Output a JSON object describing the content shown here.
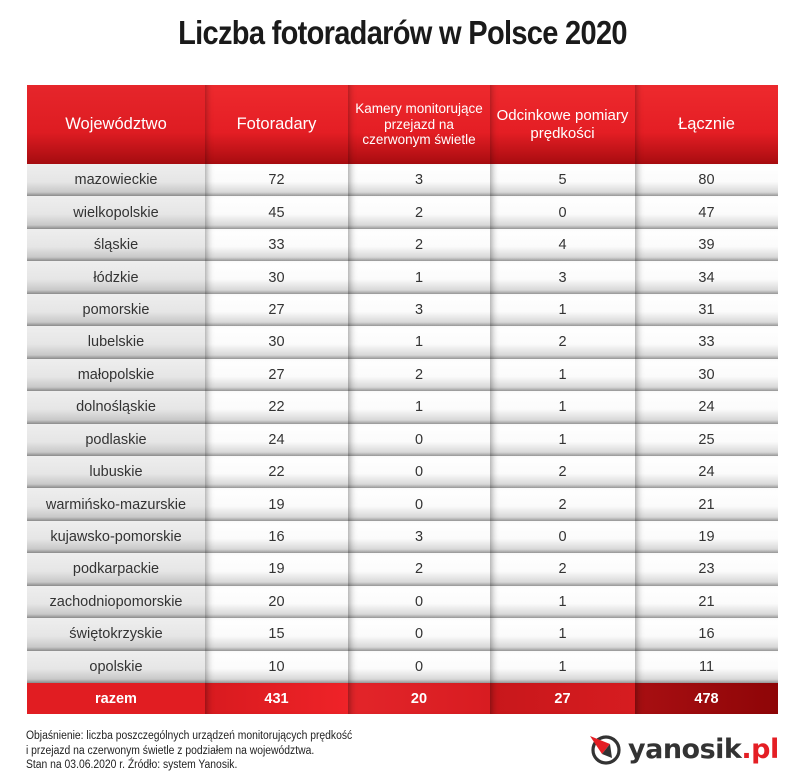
{
  "title": "Liczba fotoradarów w Polsce 2020",
  "table": {
    "headers": [
      "Województwo",
      "Fotoradary",
      "Kamery monitorujące przejazd na czerwonym świetle",
      "Odcinkowe pomiary prędkości",
      "Łącznie"
    ],
    "rows": [
      [
        "mazowieckie",
        "72",
        "3",
        "5",
        "80"
      ],
      [
        "wielkopolskie",
        "45",
        "2",
        "0",
        "47"
      ],
      [
        "śląskie",
        "33",
        "2",
        "4",
        "39"
      ],
      [
        "łódzkie",
        "30",
        "1",
        "3",
        "34"
      ],
      [
        "pomorskie",
        "27",
        "3",
        "1",
        "31"
      ],
      [
        "lubelskie",
        "30",
        "1",
        "2",
        "33"
      ],
      [
        "małopolskie",
        "27",
        "2",
        "1",
        "30"
      ],
      [
        "dolnośląskie",
        "22",
        "1",
        "1",
        "24"
      ],
      [
        "podlaskie",
        "24",
        "0",
        "1",
        "25"
      ],
      [
        "lubuskie",
        "22",
        "0",
        "2",
        "24"
      ],
      [
        "warmińsko-mazurskie",
        "19",
        "0",
        "2",
        "21"
      ],
      [
        "kujawsko-pomorskie",
        "16",
        "3",
        "0",
        "19"
      ],
      [
        "podkarpackie",
        "19",
        "2",
        "2",
        "23"
      ],
      [
        "zachodniopomorskie",
        "20",
        "0",
        "1",
        "21"
      ],
      [
        "świętokrzyskie",
        "15",
        "0",
        "1",
        "16"
      ],
      [
        "opolskie",
        "10",
        "0",
        "1",
        "11"
      ]
    ],
    "total": [
      "razem",
      "431",
      "20",
      "27",
      "478"
    ]
  },
  "footnote": {
    "line1": "Objaśnienie: liczba poszczególnych urządzeń monitorujących prędkość",
    "line2": "i przejazd na czerwonym świetle z podziałem na województwa.",
    "line3": "Stan na 03.06.2020 r. Źródło: system Yanosik."
  },
  "logo": {
    "text": "yanosik",
    "suffix": ".pl",
    "icon": "yanosik-compass-icon"
  },
  "colors": {
    "header_red": "#e41e24",
    "total_dark_red": "#8e0507",
    "first_col_gray": "#e6e6e6"
  },
  "chart_data": {
    "type": "table",
    "title": "Liczba fotoradarów w Polsce 2020",
    "columns": [
      "Województwo",
      "Fotoradary",
      "Kamery monitorujące przejazd na czerwonym świetle",
      "Odcinkowe pomiary prędkości",
      "Łącznie"
    ],
    "categories": [
      "mazowieckie",
      "wielkopolskie",
      "śląskie",
      "łódzkie",
      "pomorskie",
      "lubelskie",
      "małopolskie",
      "dolnośląskie",
      "podlaskie",
      "lubuskie",
      "warmińsko-mazurskie",
      "kujawsko-pomorskie",
      "podkarpackie",
      "zachodniopomorskie",
      "świętokrzyskie",
      "opolskie"
    ],
    "series": [
      {
        "name": "Fotoradary",
        "values": [
          72,
          45,
          33,
          30,
          27,
          30,
          27,
          22,
          24,
          22,
          19,
          16,
          19,
          20,
          15,
          10
        ]
      },
      {
        "name": "Kamery monitorujące przejazd na czerwonym świetle",
        "values": [
          3,
          2,
          2,
          1,
          3,
          1,
          2,
          1,
          0,
          0,
          0,
          3,
          2,
          0,
          0,
          0
        ]
      },
      {
        "name": "Odcinkowe pomiary prędkości",
        "values": [
          5,
          0,
          4,
          3,
          1,
          2,
          1,
          1,
          1,
          2,
          2,
          0,
          2,
          1,
          1,
          1
        ]
      },
      {
        "name": "Łącznie",
        "values": [
          80,
          47,
          39,
          34,
          31,
          33,
          30,
          24,
          25,
          24,
          21,
          19,
          23,
          21,
          16,
          11
        ]
      }
    ],
    "totals": {
      "label": "razem",
      "Fotoradary": 431,
      "Kamery monitorujące przejazd na czerwonym świetle": 20,
      "Odcinkowe pomiary prędkości": 27,
      "Łącznie": 478
    },
    "annotations": [
      "Objaśnienie: liczba poszczególnych urządzeń monitorujących prędkość i przejazd na czerwonym świetle z podziałem na województwa.",
      "Stan na 03.06.2020 r. Źródło: system Yanosik."
    ]
  }
}
